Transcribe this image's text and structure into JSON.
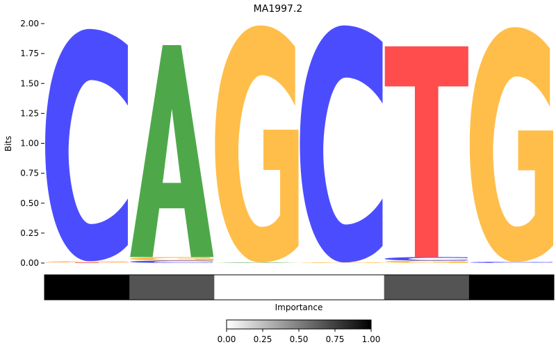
{
  "chart_data": {
    "type": "sequence-logo",
    "title": "MA1997.2",
    "ylabel": "Bits",
    "ylim": [
      0,
      2.0
    ],
    "yticks": [
      "0.00",
      "0.25",
      "0.50",
      "0.75",
      "1.00",
      "1.25",
      "1.50",
      "1.75",
      "2.00"
    ],
    "positions": [
      {
        "letters": [
          {
            "base": "C",
            "bits": 1.94
          },
          {
            "base": "G",
            "bits": 0.01
          },
          {
            "base": "T",
            "bits": 0.005
          }
        ]
      },
      {
        "letters": [
          {
            "base": "A",
            "bits": 1.77
          },
          {
            "base": "G",
            "bits": 0.03
          },
          {
            "base": "C",
            "bits": 0.02
          }
        ]
      },
      {
        "letters": [
          {
            "base": "G",
            "bits": 1.98
          },
          {
            "base": "A",
            "bits": 0.005
          }
        ]
      },
      {
        "letters": [
          {
            "base": "C",
            "bits": 1.98
          },
          {
            "base": "G",
            "bits": 0.005
          }
        ]
      },
      {
        "letters": [
          {
            "base": "T",
            "bits": 1.76
          },
          {
            "base": "C",
            "bits": 0.03
          },
          {
            "base": "G",
            "bits": 0.02
          }
        ]
      },
      {
        "letters": [
          {
            "base": "G",
            "bits": 1.96
          },
          {
            "base": "C",
            "bits": 0.01
          }
        ]
      }
    ],
    "base_colors": {
      "A": "#4ea84a",
      "C": "#4c4cff",
      "G": "#ffbe4a",
      "T": "#ff4c4c"
    },
    "importance": {
      "label": "Importance",
      "values": [
        1.0,
        0.67,
        0.0,
        0.0,
        0.67,
        1.0
      ],
      "colorbar_ticks": [
        "0.00",
        "0.25",
        "0.50",
        "0.75",
        "1.00"
      ],
      "range": [
        0,
        1
      ]
    }
  }
}
